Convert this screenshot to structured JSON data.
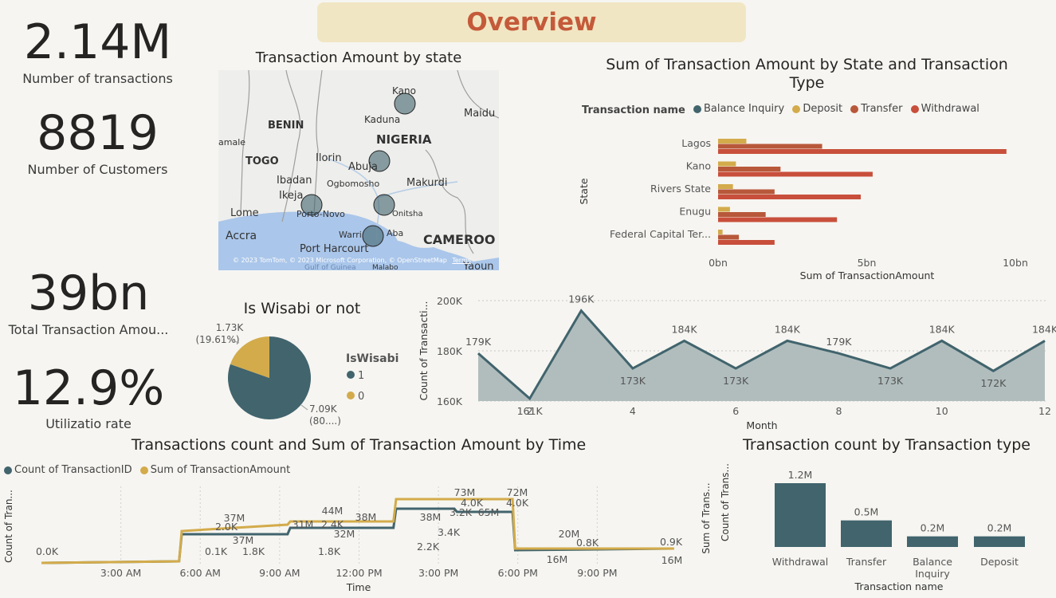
{
  "header": {
    "title": "Overview"
  },
  "colors": {
    "teal": "#41646d",
    "gold": "#d3ab4b",
    "brown": "#b8583a",
    "red": "#c84f3b",
    "area": "#b1bdbd",
    "header_bg": "#f1e6c3",
    "header_text": "#c45a3a"
  },
  "kpis": [
    {
      "value": "2.14M",
      "label": "Number of transactions"
    },
    {
      "value": "8819",
      "label": "Number of Customers"
    },
    {
      "value": "39bn",
      "label": "Total Transaction Amou..."
    },
    {
      "value": "12.9%",
      "label": "Utilizatio rate"
    }
  ],
  "map": {
    "title": "Transaction Amount by state",
    "places": [
      "Kano",
      "Kaduna",
      "NIGERIA",
      "Maidu",
      "BENIN",
      "amale",
      "TOGO",
      "Ilorin",
      "Abuja",
      "Ogbomosho",
      "Makurdi",
      "Ibadan",
      "Ikeja",
      "Lome",
      "Porto-Novo",
      "Onitsha",
      "Accra",
      "Warri",
      "Aba",
      "Port Harcourt",
      "CAMEROO",
      "Gulf of Guinea",
      "Malabo",
      "Yaoun"
    ],
    "copyright": "© 2023 TomTom, © 2023 Microsoft Corporation, © OpenStreetMap",
    "terms": "Terms"
  },
  "bar_h": {
    "title": "Sum of Transaction Amount by State and Transaction Type",
    "legend_title": "Transaction name",
    "xlabel": "Sum of TransactionAmount",
    "ylabel": "State",
    "ticks": [
      "0bn",
      "5bn",
      "10bn"
    ]
  },
  "pie": {
    "title": "Is Wisabi or not",
    "legend_title": "IsWisabi",
    "legend": [
      "1",
      "0"
    ],
    "label_small": "1.73K",
    "label_small_pct": "(19.61%)",
    "label_big": "7.09K",
    "label_big_pct": "(80....)"
  },
  "line_month": {
    "ylabel": "Count of Transacti...",
    "xlabel": "Month",
    "yticks": [
      "200K",
      "180K",
      "160K"
    ],
    "xticks": [
      "2",
      "4",
      "6",
      "8",
      "10",
      "12"
    ]
  },
  "time_chart": {
    "title": "Transactions count and Sum of Transaction Amount by Time",
    "legend": [
      "Count of TransactionID",
      "Sum of TransactionAmount"
    ],
    "ylabel_left": "Count of Tran...",
    "ylabel_right": "Sum of Trans...",
    "xlabel": "Time",
    "xticks": [
      "3:00 AM",
      "6:00 AM",
      "9:00 AM",
      "12:00 PM",
      "3:00 PM",
      "6:00 PM",
      "9:00 PM"
    ],
    "labels": [
      "0.0K",
      "0.1K",
      "2.0K",
      "37M",
      "37M",
      "1.8K",
      "31M",
      "2.4K",
      "44M",
      "32M",
      "1.8K",
      "38M",
      "38M",
      "2.2K",
      "3.4K",
      "73M",
      "4.0K",
      "3.2K",
      "65M",
      "72M",
      "4.0K",
      "20M",
      "0.8K",
      "16M",
      "0.9K",
      "16M"
    ]
  },
  "type_chart": {
    "title": "Transaction count by Transaction type",
    "ylabel": "Count of Trans...",
    "xlabel": "Transaction name"
  },
  "chart_data": [
    {
      "type": "bar",
      "title": "Sum of Transaction Amount by State and Transaction Type",
      "categories": [
        "Lagos",
        "Kano",
        "Rivers State",
        "Enugu",
        "Federal Capital Ter..."
      ],
      "series": [
        {
          "name": "Balance Inquiry",
          "values": [
            0,
            0,
            0,
            0,
            0
          ]
        },
        {
          "name": "Deposit",
          "values": [
            0.95,
            0.6,
            0.5,
            0.4,
            0.15
          ]
        },
        {
          "name": "Transfer",
          "values": [
            3.5,
            2.1,
            1.9,
            1.6,
            0.7
          ]
        },
        {
          "name": "Withdrawal",
          "values": [
            9.7,
            5.2,
            4.8,
            4.0,
            1.9
          ]
        }
      ],
      "xlabel": "Sum of TransactionAmount",
      "ylabel": "State",
      "xlim": [
        0,
        10.5
      ],
      "units": "bn"
    },
    {
      "type": "pie",
      "title": "Is Wisabi or not",
      "categories": [
        "1",
        "0"
      ],
      "values": [
        7090,
        1730
      ]
    },
    {
      "type": "area",
      "x": [
        1,
        2,
        3,
        4,
        5,
        6,
        7,
        8,
        9,
        10,
        11,
        12
      ],
      "values": [
        179,
        161,
        196,
        173,
        184,
        173,
        184,
        179,
        173,
        184,
        172,
        184
      ],
      "labels": [
        "179K",
        "161K",
        "196K",
        "173K",
        "184K",
        "173K",
        "184K",
        "179K",
        "173K",
        "184K",
        "172K",
        "184K"
      ],
      "xlabel": "Month",
      "ylabel": "Count of Transacti...",
      "ylim": [
        160,
        200
      ],
      "units": "K"
    },
    {
      "type": "line",
      "title": "Transactions count and Sum of Transaction Amount by Time",
      "x_hours": [
        0,
        5.2,
        5.3,
        9.3,
        9.4,
        13.3,
        13.4,
        15.6,
        15.7,
        17.8,
        17.9,
        23.9
      ],
      "series": [
        {
          "name": "Count of TransactionID",
          "values": [
            0.0,
            0.1,
            1.8,
            1.8,
            2.2,
            2.2,
            3.4,
            3.4,
            3.2,
            3.2,
            0.8,
            0.9
          ]
        },
        {
          "name": "Sum of TransactionAmount",
          "values": [
            0.0,
            0.1,
            2.0,
            2.4,
            2.6,
            2.6,
            4.0,
            4.0,
            4.0,
            4.0,
            0.9,
            0.9
          ]
        }
      ],
      "xlabel": "Time"
    },
    {
      "type": "bar",
      "title": "Transaction count by Transaction type",
      "categories": [
        "Withdrawal",
        "Transfer",
        "Balance Inquiry",
        "Deposit"
      ],
      "values": [
        1.2,
        0.5,
        0.2,
        0.2
      ],
      "labels": [
        "1.2M",
        "0.5M",
        "0.2M",
        "0.2M"
      ],
      "xlabel": "Transaction name",
      "ylabel": "Count of Trans...",
      "units": "M"
    }
  ]
}
